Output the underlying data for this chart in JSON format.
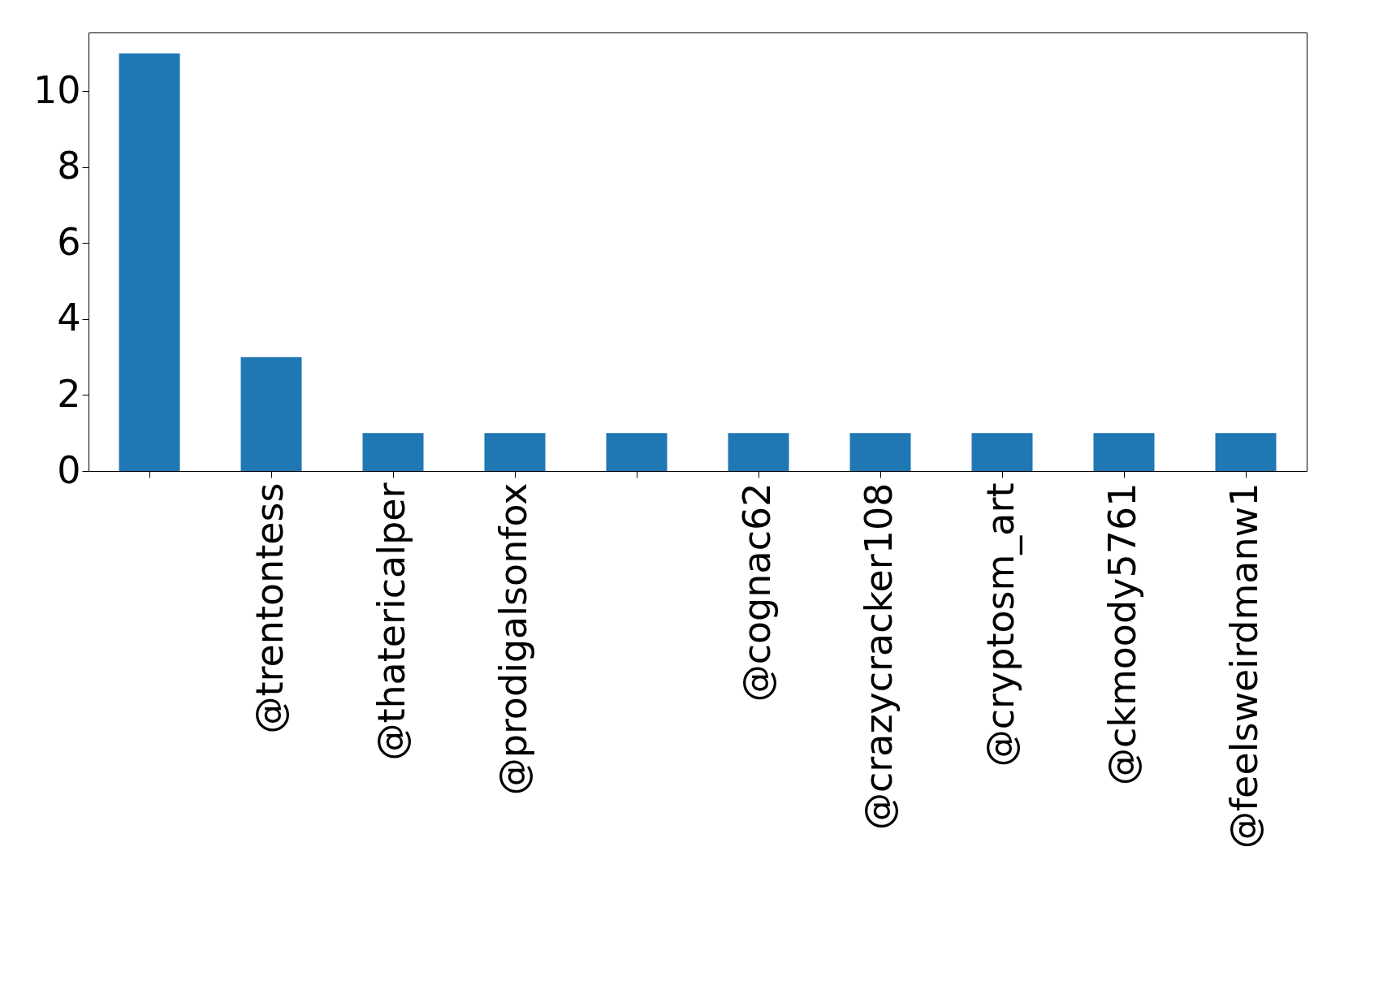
{
  "chart_data": {
    "type": "bar",
    "categories": [
      null,
      "@trentontess",
      "@thatericalper",
      "@prodigalsonfox",
      null,
      "@cognac62",
      "@crazycracker108",
      "@cryptosm_art",
      "@ckmoody5761",
      "@feelsweirdmanw1"
    ],
    "values": [
      11,
      3,
      1,
      1,
      1,
      1,
      1,
      1,
      1,
      1
    ],
    "color": "#1f77b4",
    "ylim": [
      0,
      11.55
    ],
    "yticks": [
      0,
      2,
      4,
      6,
      8,
      10
    ],
    "grid": false
  }
}
